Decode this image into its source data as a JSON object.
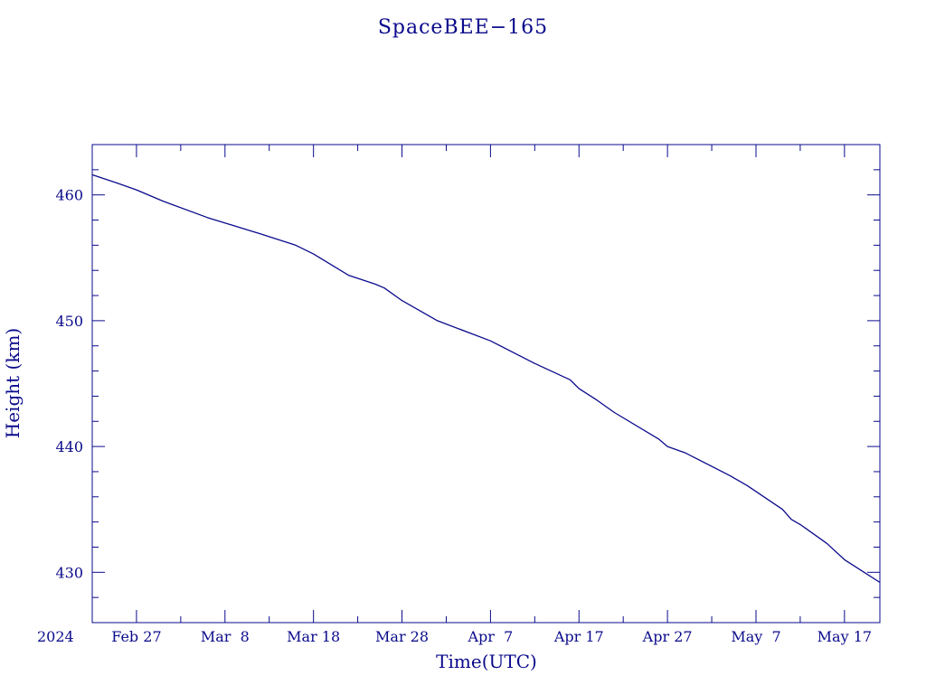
{
  "colors": {
    "ink": "#0a0a8c",
    "background": "#ffffff"
  },
  "chart_data": {
    "type": "line",
    "title": "SpaceBEE−165",
    "xlabel": "Time(UTC)",
    "ylabel": "Height (km)",
    "x_axis_type": "date",
    "xlim": [
      "2024-02-22",
      "2024-05-21"
    ],
    "ylim": [
      426,
      464
    ],
    "grid": false,
    "yticks": [
      430,
      440,
      450,
      460
    ],
    "ytick_labels": [
      "430",
      "440",
      "450",
      "460"
    ],
    "xticks": [
      "2024-02-27",
      "2024-03-08",
      "2024-03-18",
      "2024-03-28",
      "2024-04-07",
      "2024-04-17",
      "2024-04-27",
      "2024-05-07",
      "2024-05-17"
    ],
    "xtick_labels": [
      "Feb 27",
      "Mar  8",
      "Mar 18",
      "Mar 28",
      "Apr  7",
      "Apr 17",
      "Apr 27",
      "May  7",
      "May 17"
    ],
    "x_origin_label": "2024",
    "series": [
      {
        "x": [
          "2024-02-22",
          "2024-02-25",
          "2024-02-27",
          "2024-03-01",
          "2024-03-06",
          "2024-03-12",
          "2024-03-16",
          "2024-03-18",
          "2024-03-22",
          "2024-03-25",
          "2024-03-26",
          "2024-03-28",
          "2024-04-01",
          "2024-04-07",
          "2024-04-12",
          "2024-04-16",
          "2024-04-17",
          "2024-04-19",
          "2024-04-21",
          "2024-04-26",
          "2024-04-27",
          "2024-04-29",
          "2024-05-04",
          "2024-05-06",
          "2024-05-10",
          "2024-05-11",
          "2024-05-12",
          "2024-05-15",
          "2024-05-17",
          "2024-05-21"
        ],
        "y": [
          461.6,
          460.9,
          460.4,
          459.5,
          458.2,
          456.9,
          456.0,
          455.3,
          453.6,
          452.9,
          452.6,
          451.6,
          450.0,
          448.4,
          446.6,
          445.3,
          444.6,
          443.7,
          442.7,
          440.6,
          440.0,
          439.5,
          437.7,
          436.9,
          435.0,
          434.2,
          433.8,
          432.3,
          431.0,
          429.2
        ]
      }
    ]
  }
}
